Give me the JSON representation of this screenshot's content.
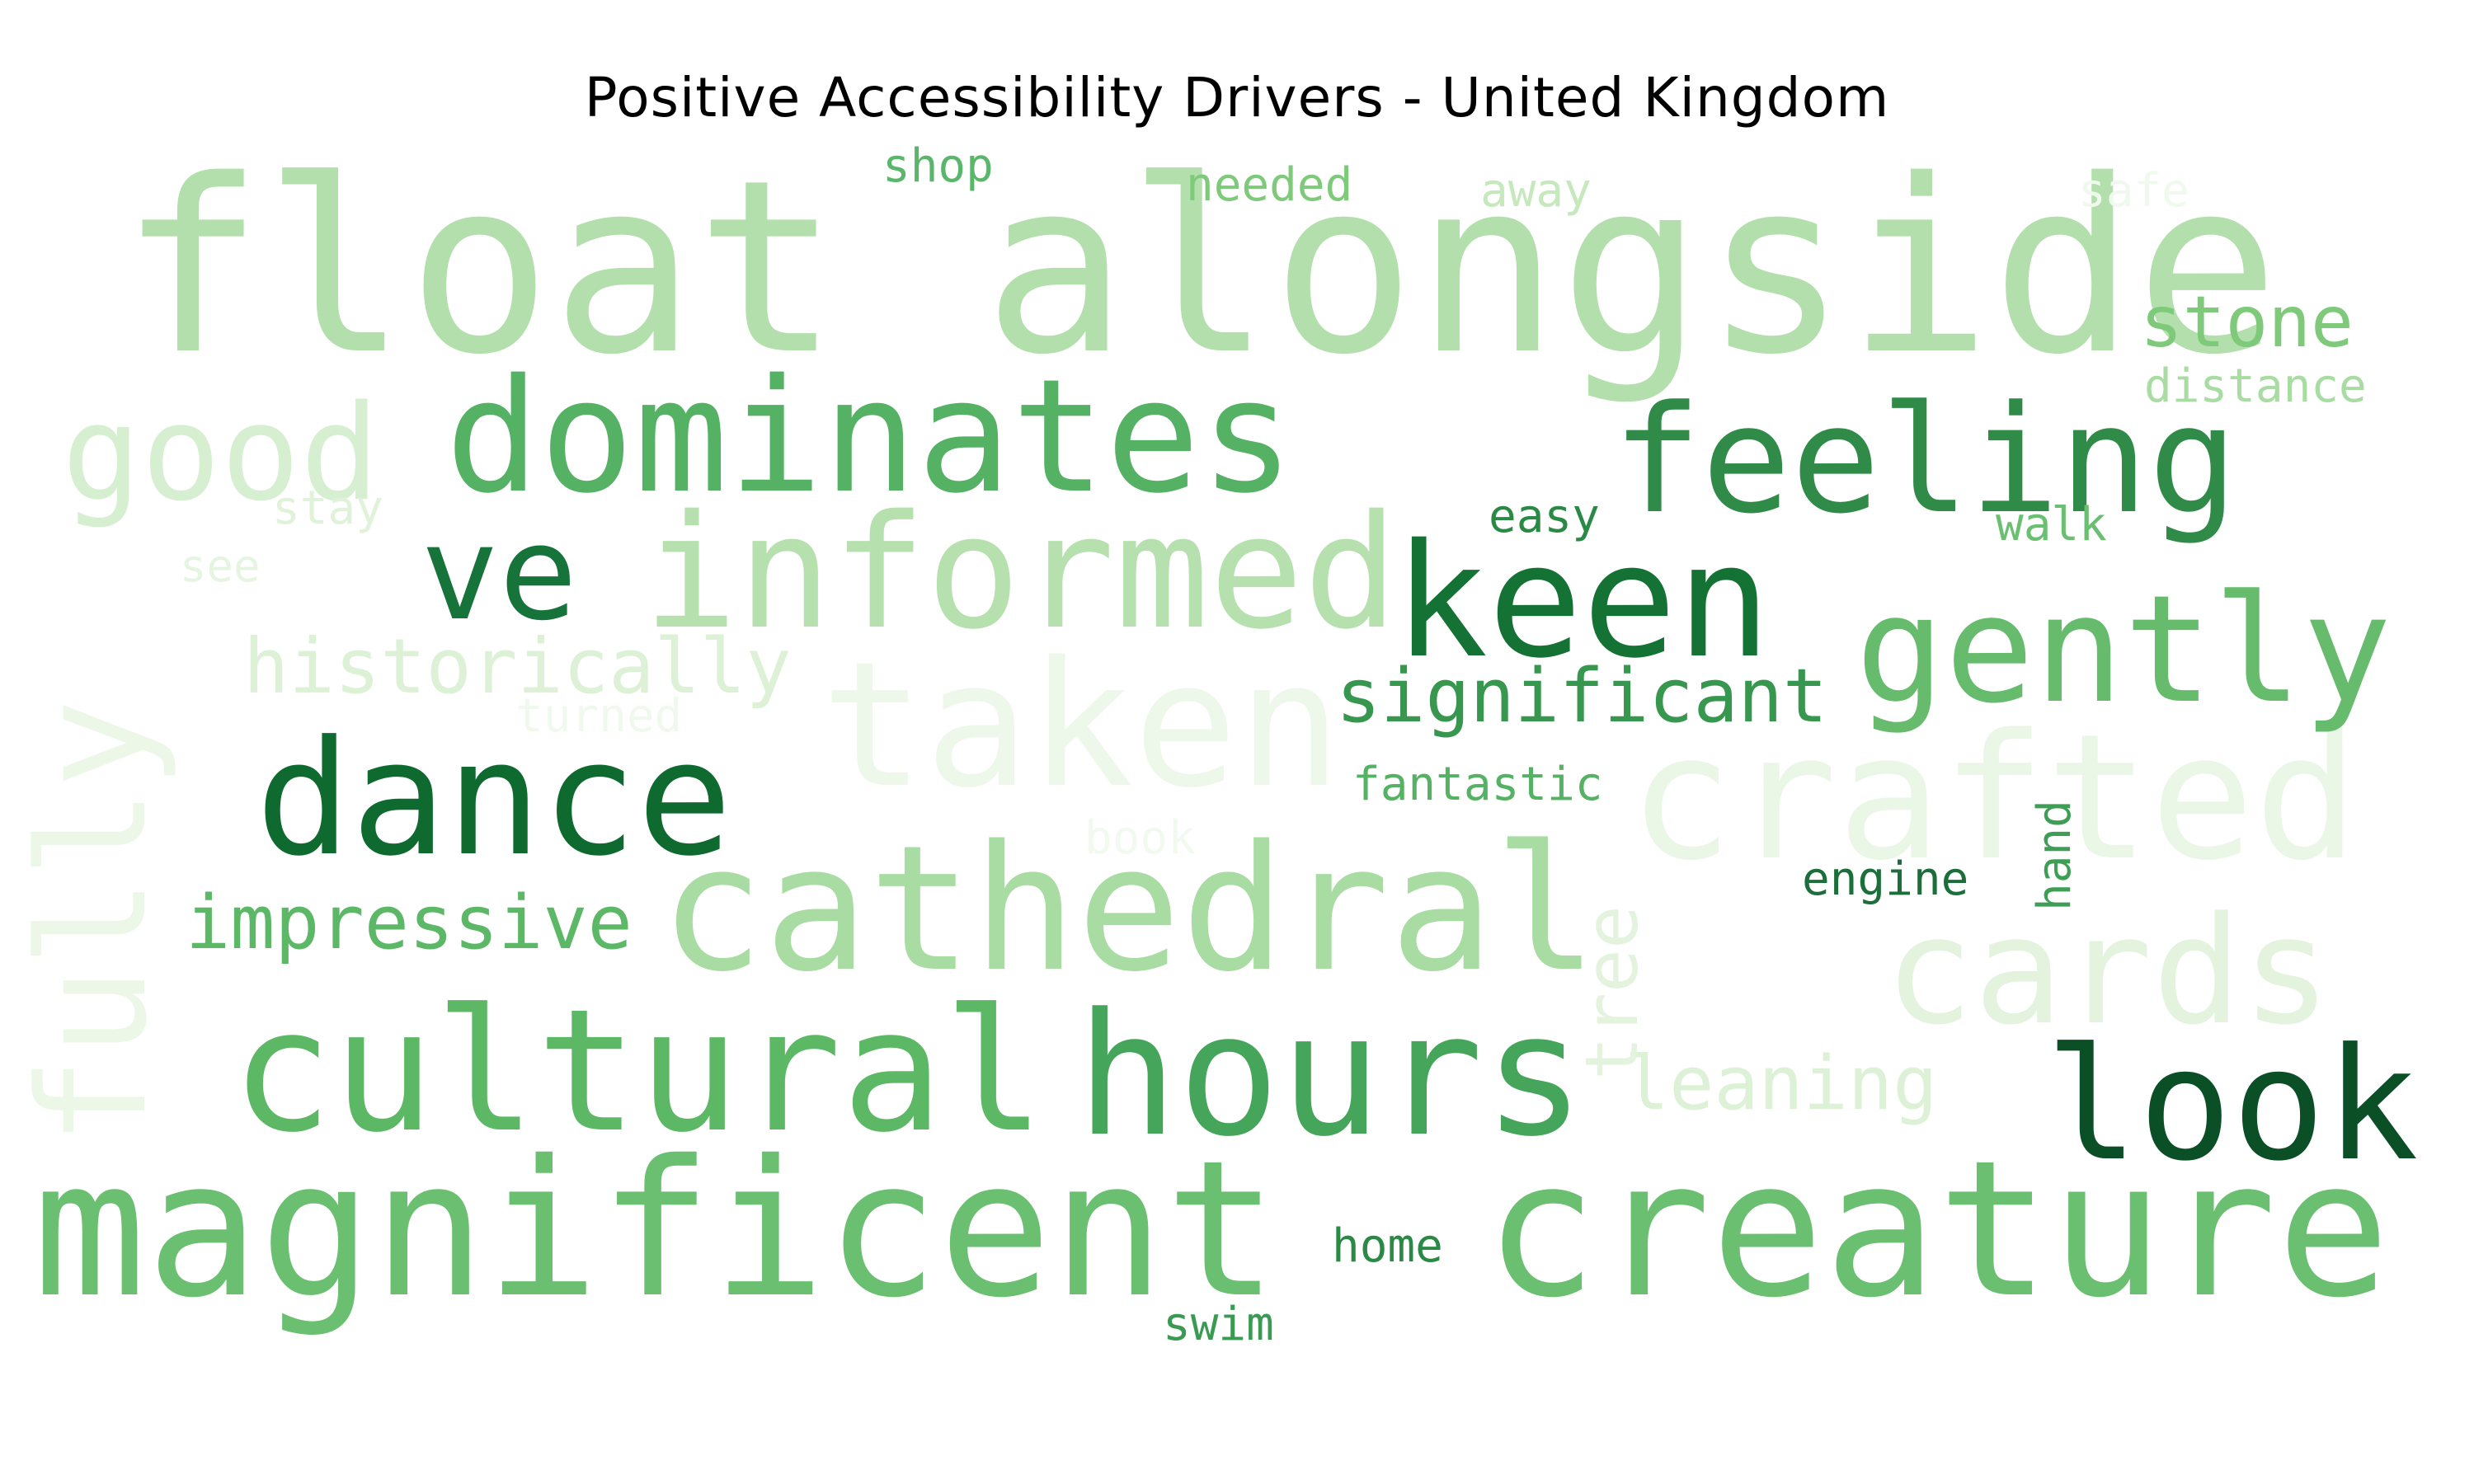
{
  "title": "Positive Accessibility Drivers - United Kingdom",
  "chart_data": {
    "type": "wordcloud",
    "title": "Positive Accessibility Drivers - United Kingdom",
    "colormap": "Greens",
    "words": [
      {
        "text": "float alongside",
        "weight": 0.96,
        "color": "#b2dfab",
        "orientation": "horizontal"
      },
      {
        "text": "magnificent",
        "weight": 0.94,
        "color": "#6abf71",
        "orientation": "horizontal"
      },
      {
        "text": "creature",
        "weight": 0.92,
        "color": "#6abf71",
        "orientation": "horizontal"
      },
      {
        "text": "cathedral",
        "weight": 0.86,
        "color": "#a8dca2",
        "orientation": "horizontal"
      },
      {
        "text": "crafted",
        "weight": 0.84,
        "color": "#eaf6e6",
        "orientation": "horizontal"
      },
      {
        "text": "taken",
        "weight": 0.84,
        "color": "#eef8ea",
        "orientation": "horizontal"
      },
      {
        "text": "cultural",
        "weight": 0.82,
        "color": "#5db866",
        "orientation": "horizontal"
      },
      {
        "text": "hours",
        "weight": 0.82,
        "color": "#45a55a",
        "orientation": "horizontal"
      },
      {
        "text": "dominates",
        "weight": 0.8,
        "color": "#55b163",
        "orientation": "horizontal"
      },
      {
        "text": "informed",
        "weight": 0.8,
        "color": "#b6e0ae",
        "orientation": "horizontal"
      },
      {
        "text": "dance",
        "weight": 0.8,
        "color": "#0f6a30",
        "orientation": "horizontal"
      },
      {
        "text": "keen",
        "weight": 0.78,
        "color": "#147234",
        "orientation": "horizontal"
      },
      {
        "text": "look",
        "weight": 0.78,
        "color": "#0b4f26",
        "orientation": "horizontal"
      },
      {
        "text": "feeling",
        "weight": 0.75,
        "color": "#2f8b47",
        "orientation": "horizontal"
      },
      {
        "text": "cards",
        "weight": 0.75,
        "color": "#e3f3de",
        "orientation": "horizontal"
      },
      {
        "text": "fully",
        "weight": 0.75,
        "color": "#ecf7e8",
        "orientation": "vertical"
      },
      {
        "text": "gently",
        "weight": 0.73,
        "color": "#66bb6d",
        "orientation": "horizontal"
      },
      {
        "text": "good",
        "weight": 0.66,
        "color": "#d6efd0",
        "orientation": "horizontal"
      },
      {
        "text": "ve",
        "weight": 0.66,
        "color": "#16733a",
        "orientation": "horizontal"
      },
      {
        "text": "historically",
        "weight": 0.42,
        "color": "#dcf1d6",
        "orientation": "horizontal"
      },
      {
        "text": "significant",
        "weight": 0.42,
        "color": "#37974f",
        "orientation": "horizontal"
      },
      {
        "text": "impressive",
        "weight": 0.42,
        "color": "#5cb866",
        "orientation": "horizontal"
      },
      {
        "text": "leaning",
        "weight": 0.42,
        "color": "#dcf1d6",
        "orientation": "horizontal"
      },
      {
        "text": "stone",
        "weight": 0.4,
        "color": "#7fc97a",
        "orientation": "horizontal"
      },
      {
        "text": "tree",
        "weight": 0.38,
        "color": "#e3f3de",
        "orientation": "vertical"
      },
      {
        "text": "distance",
        "weight": 0.28,
        "color": "#a8dca2",
        "orientation": "horizontal"
      },
      {
        "text": "easy",
        "weight": 0.28,
        "color": "#2a8a45",
        "orientation": "horizontal"
      },
      {
        "text": "fantastic",
        "weight": 0.28,
        "color": "#55b163",
        "orientation": "horizontal"
      },
      {
        "text": "engine",
        "weight": 0.28,
        "color": "#1c6e3a",
        "orientation": "horizontal"
      },
      {
        "text": "home",
        "weight": 0.28,
        "color": "#2a8a45",
        "orientation": "horizontal"
      },
      {
        "text": "swim",
        "weight": 0.26,
        "color": "#3a9a53",
        "orientation": "horizontal"
      },
      {
        "text": "shop",
        "weight": 0.26,
        "color": "#5ab66a",
        "orientation": "horizontal"
      },
      {
        "text": "needed",
        "weight": 0.26,
        "color": "#7fc97a",
        "orientation": "horizontal"
      },
      {
        "text": "away",
        "weight": 0.26,
        "color": "#c6e8bd",
        "orientation": "horizontal"
      },
      {
        "text": "safe",
        "weight": 0.26,
        "color": "#f0f9ed",
        "orientation": "horizontal"
      },
      {
        "text": "walk",
        "weight": 0.26,
        "color": "#6abf71",
        "orientation": "horizontal"
      },
      {
        "text": "stay",
        "weight": 0.26,
        "color": "#e0f2da",
        "orientation": "horizontal"
      },
      {
        "text": "see",
        "weight": 0.24,
        "color": "#e6f5e1",
        "orientation": "horizontal"
      },
      {
        "text": "turned",
        "weight": 0.26,
        "color": "#f0f9ed",
        "orientation": "horizontal"
      },
      {
        "text": "book",
        "weight": 0.26,
        "color": "#f2faef",
        "orientation": "horizontal"
      },
      {
        "text": "hand",
        "weight": 0.26,
        "color": "#3f9e56",
        "orientation": "vertical"
      }
    ]
  }
}
